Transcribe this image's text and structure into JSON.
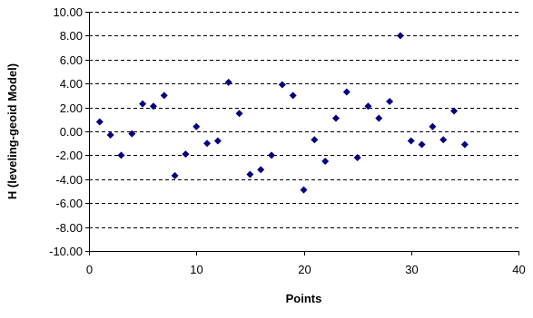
{
  "chart_data": {
    "type": "scatter",
    "title": "",
    "xlabel": "Points",
    "ylabel": "H (leveling-geoid Model)",
    "xlim": [
      0,
      40
    ],
    "ylim": [
      -10,
      10
    ],
    "x_ticks": [
      0,
      10,
      20,
      30,
      40
    ],
    "y_ticks": [
      -10,
      -8,
      -6,
      -4,
      -2,
      0,
      2,
      4,
      6,
      8,
      10
    ],
    "x_tick_labels": [
      "0",
      "10",
      "20",
      "30",
      "40"
    ],
    "y_tick_labels": [
      "-10.00",
      "-8.00",
      "-6.00",
      "-4.00",
      "-2.00",
      "0.00",
      "2.00",
      "4.00",
      "6.00",
      "8.00",
      "10.00"
    ],
    "grid": "horizontal dashed",
    "legend": "none",
    "marker": "diamond",
    "colors": {
      "marker": "#000080",
      "grid": "#000000",
      "axis": "#000000"
    },
    "series": [
      {
        "points": [
          [
            1,
            0.8
          ],
          [
            2,
            -0.3
          ],
          [
            3,
            -2.0
          ],
          [
            4,
            -0.2
          ],
          [
            5,
            2.3
          ],
          [
            6,
            2.1
          ],
          [
            7,
            3.0
          ],
          [
            8,
            -3.7
          ],
          [
            9,
            -1.9
          ],
          [
            10,
            0.4
          ],
          [
            11,
            -1.0
          ],
          [
            12,
            -0.8
          ],
          [
            13,
            4.1
          ],
          [
            14,
            1.5
          ],
          [
            15,
            -3.6
          ],
          [
            16,
            -3.2
          ],
          [
            17,
            -2.0
          ],
          [
            18,
            3.9
          ],
          [
            19,
            3.0
          ],
          [
            20,
            -4.9
          ],
          [
            21,
            -0.7
          ],
          [
            22,
            -2.5
          ],
          [
            23,
            1.1
          ],
          [
            24,
            3.3
          ],
          [
            25,
            -2.2
          ],
          [
            26,
            2.1
          ],
          [
            27,
            1.1
          ],
          [
            28,
            2.5
          ],
          [
            29,
            8.0
          ],
          [
            30,
            -0.8
          ],
          [
            31,
            -1.1
          ],
          [
            32,
            0.4
          ],
          [
            33,
            -0.7
          ],
          [
            34,
            1.7
          ],
          [
            35,
            -1.1
          ]
        ]
      }
    ]
  }
}
